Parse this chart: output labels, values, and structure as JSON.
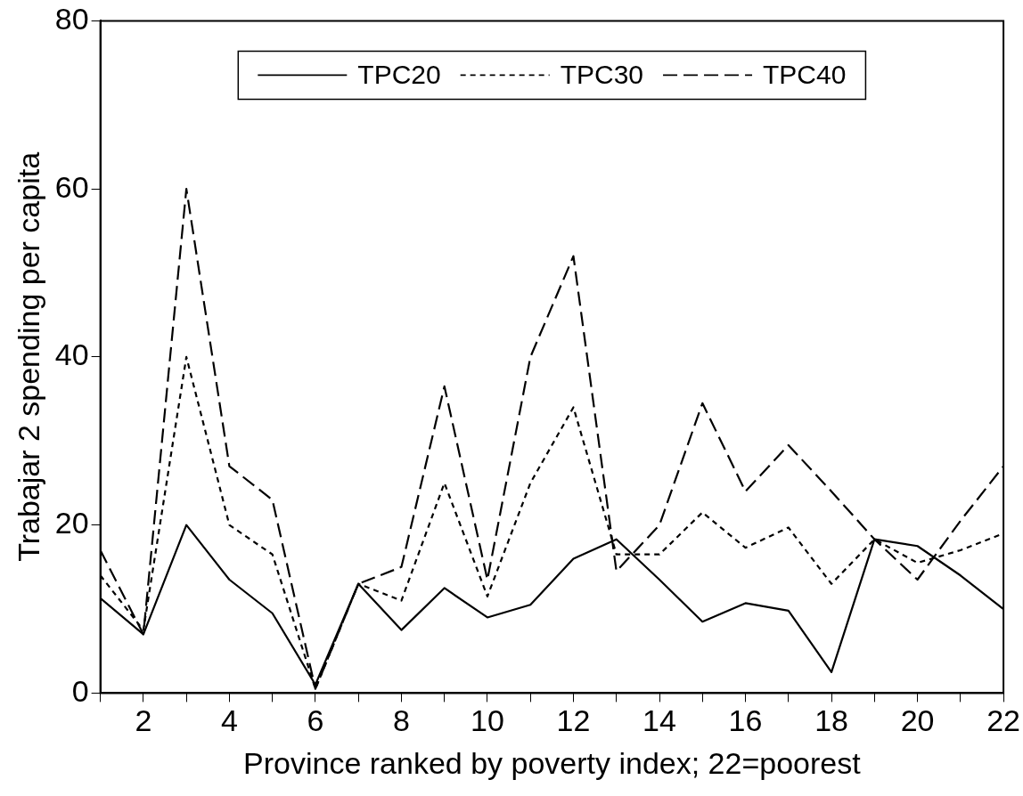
{
  "chart_data": {
    "type": "line",
    "xlabel": "Province ranked by poverty index; 22=poorest",
    "ylabel": "Trabajar 2 spending per capita",
    "x": [
      1,
      2,
      3,
      4,
      5,
      6,
      7,
      8,
      9,
      10,
      11,
      12,
      13,
      14,
      15,
      16,
      17,
      18,
      19,
      20,
      21,
      22
    ],
    "xlim": [
      1,
      22
    ],
    "xticks": [
      {
        "value": 1,
        "label": null
      },
      2,
      {
        "value": 3,
        "label": null
      },
      4,
      {
        "value": 5,
        "label": null
      },
      6,
      {
        "value": 7,
        "label": null
      },
      8,
      {
        "value": 9,
        "label": null
      },
      10,
      {
        "value": 11,
        "label": null
      },
      12,
      {
        "value": 13,
        "label": null
      },
      14,
      {
        "value": 15,
        "label": null
      },
      16,
      {
        "value": 17,
        "label": null
      },
      18,
      {
        "value": 19,
        "label": null
      },
      20,
      {
        "value": 21,
        "label": null
      },
      22
    ],
    "ylim": [
      0,
      80
    ],
    "yticks": [
      0,
      20,
      40,
      60,
      80
    ],
    "grid": false,
    "legend": "top",
    "marker": "none",
    "series": [
      {
        "name": "TPC20",
        "color": "#000000",
        "line_style": "solid",
        "values": [
          11.3,
          7,
          20,
          13.5,
          9.5,
          1,
          13,
          7.5,
          12.5,
          9,
          10.5,
          16,
          18.3,
          13.5,
          8.5,
          10.7,
          9.8,
          2.5,
          18.3,
          17.5,
          14,
          10
        ]
      },
      {
        "name": "TPC30",
        "color": "#000000",
        "line_style": "dashed",
        "values": [
          14,
          7.5,
          40,
          20,
          16.5,
          0.5,
          13,
          11,
          25,
          11.5,
          25,
          34,
          16.5,
          16.5,
          21.5,
          17.3,
          19.7,
          13,
          18.3,
          15.5,
          17,
          19
        ]
      },
      {
        "name": "TPC40",
        "color": "#000000",
        "line_style": "dashed",
        "values": [
          17,
          7,
          60,
          27,
          23,
          0.5,
          13,
          15,
          36.5,
          13.5,
          40,
          52,
          14.5,
          20,
          34.5,
          24,
          29.5,
          24,
          18.3,
          13.5,
          20.5,
          27
        ]
      }
    ]
  }
}
